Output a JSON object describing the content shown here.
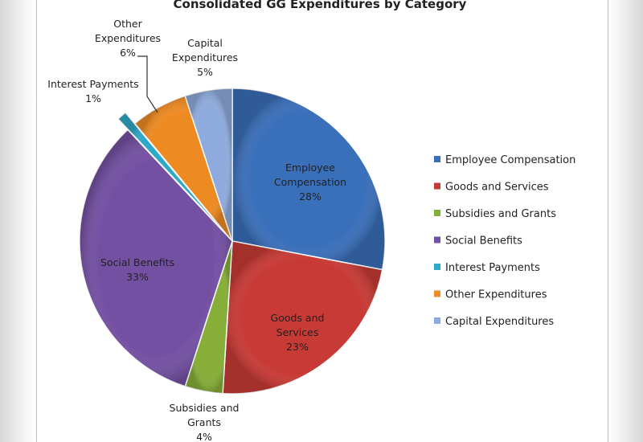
{
  "chart_data": {
    "type": "pie",
    "title": "Consolidated GG Expenditures by Category",
    "slices": [
      {
        "name": "Employee Compensation",
        "value": 28,
        "label_lines": [
          "Employee",
          "Compensation",
          "28%"
        ],
        "color": "#3a6fba"
      },
      {
        "name": "Goods and Services",
        "value": 23,
        "label_lines": [
          "Goods and",
          "Services",
          "23%"
        ],
        "color": "#c83a35"
      },
      {
        "name": "Subsidies and Grants",
        "value": 4,
        "label_lines": [
          "Subsidies and",
          "Grants",
          "4%"
        ],
        "color": "#86ae38"
      },
      {
        "name": "Social Benefits",
        "value": 33,
        "label_lines": [
          "Social Benefits",
          "33%"
        ],
        "color": "#7450a3"
      },
      {
        "name": "Interest Payments",
        "value": 1,
        "label_lines": [
          "Interest Payments",
          "1%"
        ],
        "color": "#2fa9c8"
      },
      {
        "name": "Other Expenditures",
        "value": 6,
        "label_lines": [
          "Other",
          "Expenditures",
          "6%"
        ],
        "color": "#ee8a22"
      },
      {
        "name": "Capital Expenditures",
        "value": 5,
        "label_lines": [
          "Capital",
          "Expenditures",
          "5%"
        ],
        "color": "#8fabdd"
      }
    ],
    "legend": [
      "Employee Compensation",
      "Goods and Services",
      "Subsidies and Grants",
      "Social Benefits",
      "Interest Payments",
      "Other Expenditures",
      "Capital Expenditures"
    ],
    "legend_position": "right",
    "start_angle_deg": 0,
    "direction": "clockwise",
    "exploded_slice": "Interest Payments"
  }
}
